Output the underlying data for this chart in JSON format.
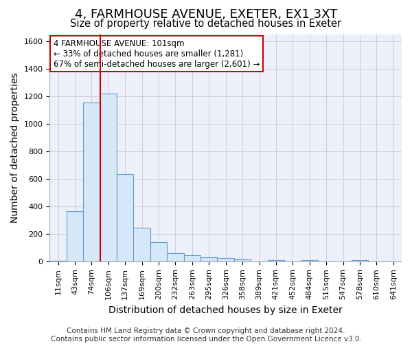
{
  "title": "4, FARMHOUSE AVENUE, EXETER, EX1 3XT",
  "subtitle": "Size of property relative to detached houses in Exeter",
  "xlabel": "Distribution of detached houses by size in Exeter",
  "ylabel": "Number of detached properties",
  "footer_line1": "Contains HM Land Registry data © Crown copyright and database right 2024.",
  "footer_line2": "Contains public sector information licensed under the Open Government Licence v3.0.",
  "annotation_title": "4 FARMHOUSE AVENUE: 101sqm",
  "annotation_line1": "← 33% of detached houses are smaller (1,281)",
  "annotation_line2": "67% of semi-detached houses are larger (2,601) →",
  "bar_edge_color": "#5b9bd5",
  "bar_face_color": "#d6e8f7",
  "grid_color": "#c8c8d0",
  "background_color": "#edf0fb",
  "redline_color": "#cc0000",
  "annotation_box_color": "#cc0000",
  "categories": [
    "11sqm",
    "43sqm",
    "74sqm",
    "106sqm",
    "137sqm",
    "169sqm",
    "200sqm",
    "232sqm",
    "263sqm",
    "295sqm",
    "326sqm",
    "358sqm",
    "389sqm",
    "421sqm",
    "452sqm",
    "484sqm",
    "515sqm",
    "547sqm",
    "578sqm",
    "610sqm",
    "641sqm"
  ],
  "values": [
    8,
    365,
    1155,
    1220,
    635,
    247,
    143,
    62,
    45,
    30,
    25,
    17,
    0,
    13,
    0,
    13,
    0,
    0,
    13,
    0,
    0
  ],
  "ylim": [
    0,
    1650
  ],
  "yticks": [
    0,
    200,
    400,
    600,
    800,
    1000,
    1200,
    1400,
    1600
  ],
  "redline_bar_index": 3,
  "title_fontsize": 13,
  "subtitle_fontsize": 10.5,
  "axis_label_fontsize": 10,
  "tick_fontsize": 8,
  "annotation_fontsize": 8.5,
  "footer_fontsize": 7.5
}
